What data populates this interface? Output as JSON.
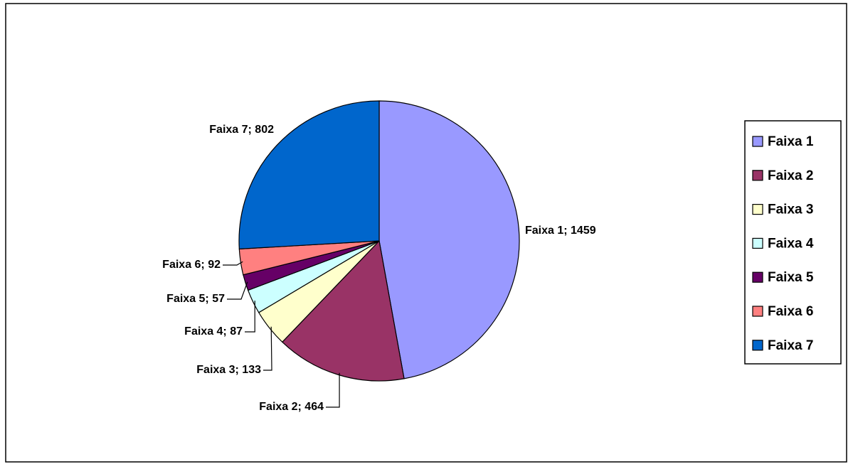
{
  "chart_data": {
    "type": "pie",
    "categories": [
      "Faixa 1",
      "Faixa 2",
      "Faixa 3",
      "Faixa 4",
      "Faixa 5",
      "Faixa 6",
      "Faixa 7"
    ],
    "values": [
      1459,
      464,
      133,
      87,
      57,
      92,
      802
    ],
    "value_labels": [
      "Faixa 1; 1459",
      "Faixa 2; 464",
      "Faixa 3; 133",
      "Faixa 4; 87",
      "Faixa 5; 57",
      "Faixa 6; 92",
      "Faixa 7; 802"
    ],
    "colors": [
      "#9999ff",
      "#993366",
      "#ffffcc",
      "#ccffff",
      "#660066",
      "#ff8080",
      "#0066cc"
    ],
    "legend": "right"
  }
}
